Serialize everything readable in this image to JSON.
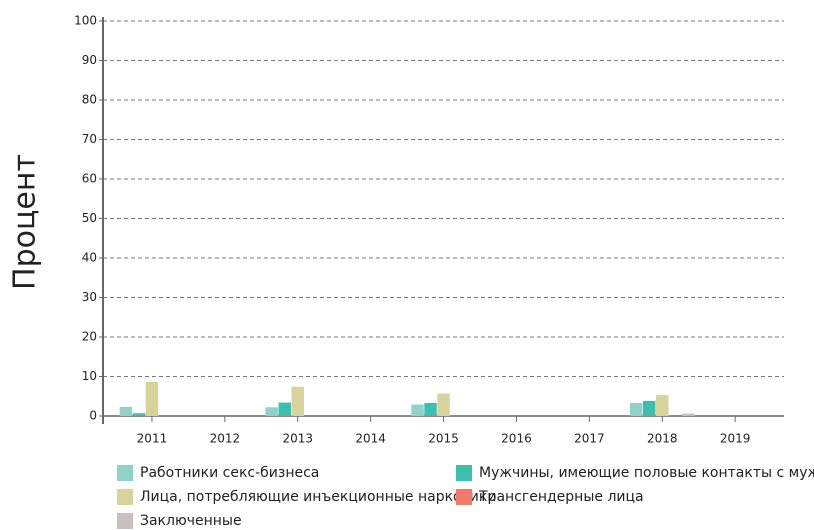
{
  "chart_data": {
    "type": "bar",
    "y_label": "Процент",
    "categories": [
      "2011",
      "2012",
      "2013",
      "2014",
      "2015",
      "2016",
      "2017",
      "2018",
      "2019"
    ],
    "series": [
      {
        "name": "Работники секс-бизнеса",
        "color": "#8fd3c8",
        "values": [
          2.3,
          null,
          2.2,
          null,
          2.9,
          null,
          null,
          3.3,
          null
        ]
      },
      {
        "name": "Мужчины, имеющие половые контакты с мужчинами",
        "color": "#3dbfb0",
        "values": [
          0.7,
          null,
          3.4,
          null,
          3.3,
          null,
          null,
          3.8,
          null
        ]
      },
      {
        "name": "Лица, потребляющие инъекционные наркотики",
        "color": "#d8d39b",
        "values": [
          8.6,
          null,
          7.4,
          null,
          5.7,
          null,
          null,
          5.3,
          null
        ]
      },
      {
        "name": "Трансгендерные лица",
        "color": "#f07b6b",
        "values": [
          null,
          null,
          null,
          null,
          null,
          null,
          null,
          null,
          null
        ]
      },
      {
        "name": "Заключенные",
        "color": "#c8c0bd",
        "values": [
          null,
          null,
          null,
          null,
          null,
          null,
          null,
          0.6,
          null
        ]
      }
    ],
    "ylim": [
      0,
      100
    ],
    "yticks": [
      0,
      10,
      20,
      30,
      40,
      50,
      60,
      70,
      80,
      90,
      100
    ],
    "grid": true
  }
}
